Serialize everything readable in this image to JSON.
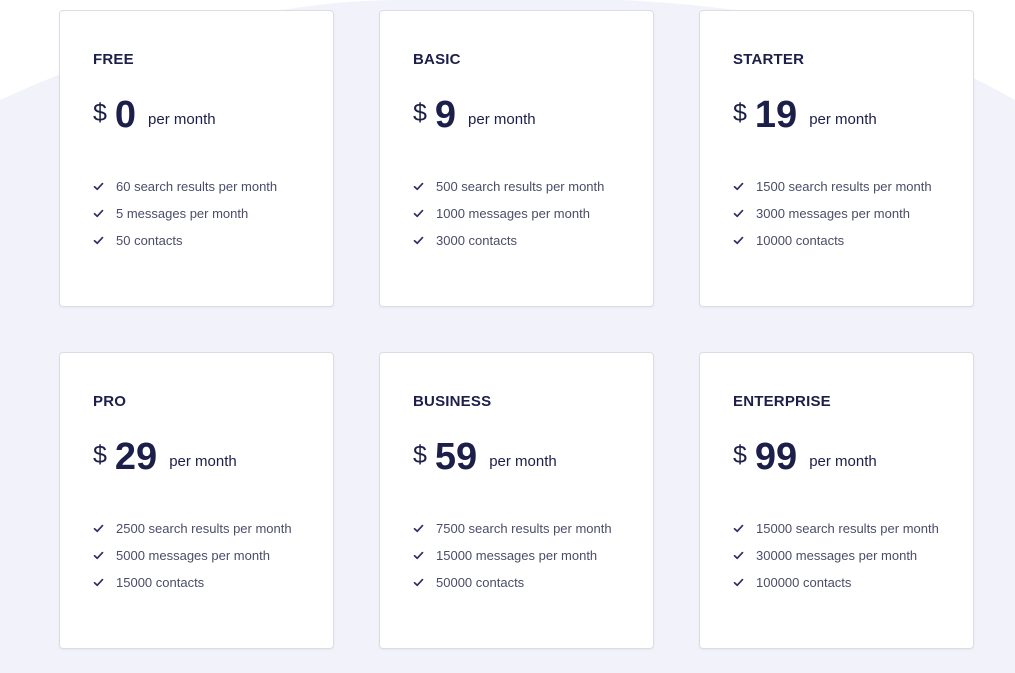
{
  "plans": [
    {
      "name": "FREE",
      "currency": "$",
      "price": "0",
      "period": "per month",
      "features": [
        "60 search results per month",
        "5 messages per month",
        "50 contacts"
      ]
    },
    {
      "name": "BASIC",
      "currency": "$",
      "price": "9",
      "period": "per month",
      "features": [
        "500 search results per month",
        "1000 messages per month",
        "3000 contacts"
      ]
    },
    {
      "name": "STARTER",
      "currency": "$",
      "price": "19",
      "period": "per month",
      "features": [
        "1500 search results per month",
        "3000 messages per month",
        "10000 contacts"
      ]
    },
    {
      "name": "PRO",
      "currency": "$",
      "price": "29",
      "period": "per month",
      "features": [
        "2500 search results per month",
        "5000 messages per month",
        "15000 contacts"
      ]
    },
    {
      "name": "BUSINESS",
      "currency": "$",
      "price": "59",
      "period": "per month",
      "features": [
        "7500 search results per month",
        "15000 messages per month",
        "50000 contacts"
      ]
    },
    {
      "name": "ENTERPRISE",
      "currency": "$",
      "price": "99",
      "period": "per month",
      "features": [
        "15000 search results per month",
        "30000 messages per month",
        "100000 contacts"
      ]
    }
  ],
  "icons": {
    "feature": "check-icon"
  },
  "colors": {
    "text_dark": "#1c1f4a",
    "text_muted": "#4a4d68",
    "background": "#f2f2fb",
    "card": "#ffffff",
    "check": "#2c2f63"
  }
}
